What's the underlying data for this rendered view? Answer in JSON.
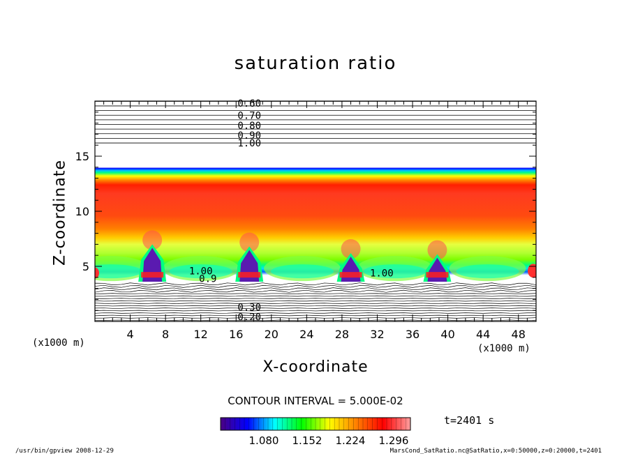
{
  "chart_data": {
    "type": "heatmap",
    "title": "saturation ratio",
    "xlabel": "X-coordinate",
    "ylabel": "Z-coordinate",
    "x_unit": "(x1000 m)",
    "y_unit": "(x1000 m)",
    "xlim": [
      0,
      50
    ],
    "ylim": [
      0,
      20
    ],
    "x_ticks": [
      4,
      8,
      12,
      16,
      20,
      24,
      28,
      32,
      36,
      40,
      44,
      48
    ],
    "y_ticks": [
      5,
      10,
      15
    ],
    "contour_labels": [
      {
        "text": "0.60",
        "x": 17.5,
        "z": 19.8
      },
      {
        "text": "0.70",
        "x": 17.5,
        "z": 18.7
      },
      {
        "text": "0.80",
        "x": 17.5,
        "z": 17.8
      },
      {
        "text": "0.90",
        "x": 17.5,
        "z": 16.9
      },
      {
        "text": "1.00",
        "x": 17.5,
        "z": 16.2
      },
      {
        "text": "1.00",
        "x": 12.0,
        "z": 4.6
      },
      {
        "text": "0.9",
        "x": 12.8,
        "z": 3.9
      },
      {
        "text": "1.00",
        "x": 32.5,
        "z": 4.4
      },
      {
        "text": "0.30",
        "x": 17.5,
        "z": 1.3
      },
      {
        "text": "0.20",
        "x": 17.5,
        "z": 0.4
      }
    ],
    "contour_interval": "CONTOUR INTERVAL = 5.000E-02",
    "colorbar": {
      "ticks": [
        "1.080",
        "1.152",
        "1.224",
        "1.296"
      ],
      "colors": [
        "#4b0082",
        "#0000ff",
        "#00ffff",
        "#00ff00",
        "#ffff00",
        "#ff8000",
        "#ff0000",
        "#ffa0a0"
      ]
    },
    "time_label": "t=2401 s"
  },
  "footer": {
    "left": "/usr/bin/gpview  2008-12-29",
    "right": "MarsCond_SatRatio.nc@SatRatio,x=0:50000,z=0:20000,t=2401"
  }
}
